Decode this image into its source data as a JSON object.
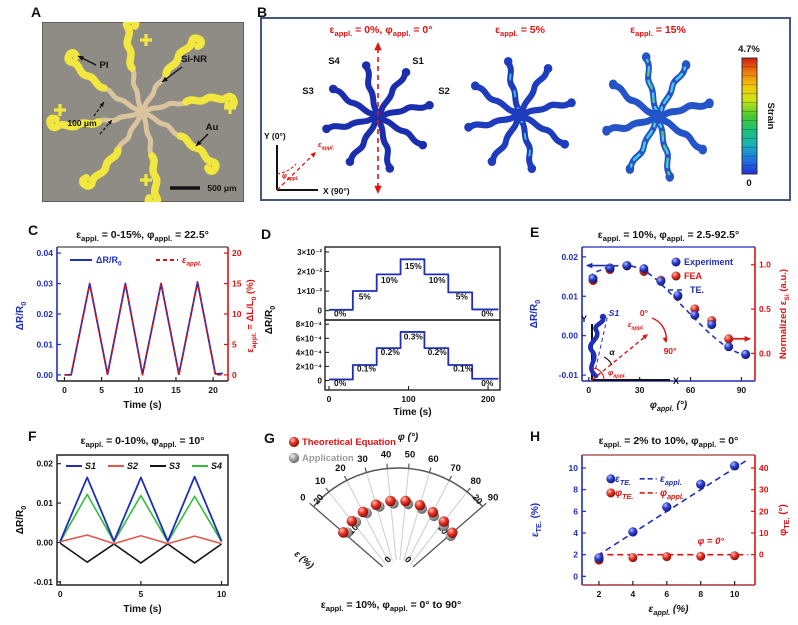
{
  "panels": {
    "a": "A",
    "b": "B",
    "c": "C",
    "d": "D",
    "e": "E",
    "f": "F",
    "g": "G",
    "h": "H"
  },
  "colors": {
    "blue": "#1f2fb8",
    "red": "#e01212",
    "salmon": "#e4574d",
    "green": "#2fbe3f",
    "black": "#151515",
    "gray": "#9a9a9a",
    "gold": "#f2e73e",
    "tan": "#d9c49d",
    "micrograph_bg": "#8e8c85",
    "frame": "#46577e",
    "cyan": "#3fc6e0",
    "darkline": "#333333",
    "maroon": "#a03838"
  },
  "panel_a": {
    "pi": "PI",
    "si_nr": "Si-NR",
    "width_note": "100 μm",
    "au": "Au",
    "scalebar": "500 μm"
  },
  "panel_b": {
    "titles": [
      "ε_{appl.} = 0%, φ_{appl.} = 0°",
      "ε_{appl.} = 5%",
      "ε_{appl.} = 15%"
    ],
    "sensors": {
      "s4": "S4",
      "s1": "S1",
      "s3": "S3",
      "s2": "S2"
    },
    "axis_y": "Y (0°)",
    "axis_x": "X (90°)",
    "eps_arrow": "ε_{appl.}",
    "phi_arrow": "φ_{appl.}",
    "colorbar": {
      "max": "4.7%",
      "min": "0",
      "label": "Strain"
    }
  },
  "chart_data": [
    {
      "id": "C",
      "type": "line",
      "title": "ε_{appl.} = 0-15%, φ_{appl.} = 22.5°",
      "xlabel": "Time (s)",
      "ylabel_left": "ΔR/R_{0}",
      "ylabel_right": "ε_{appl.} = ΔL/L_{0} (%)",
      "xlim": [
        -1,
        22
      ],
      "xticks": [
        0,
        5,
        10,
        15,
        20
      ],
      "ylim_left": [
        -0.002,
        0.042
      ],
      "yvals_left": [
        0,
        0.01,
        0.02,
        0.03,
        0.04
      ],
      "yticks_left": [
        "0.00",
        "0.01",
        "0.02",
        "0.03",
        "0.04"
      ],
      "ylim_right": [
        -1,
        21
      ],
      "yvals_right": [
        0,
        5,
        10,
        15,
        20
      ],
      "yticks_right": [
        "0",
        "5",
        "10",
        "15",
        "20"
      ],
      "legend": [
        {
          "label": "ΔR/R_{0}",
          "color": "blue",
          "dash": false
        },
        {
          "label": "ε_{appl.}",
          "color": "red",
          "dash": true
        }
      ],
      "series": [
        {
          "name": "dR-R0",
          "axis": "left",
          "color": "blue",
          "dash": false,
          "x": [
            0,
            0.9,
            3.4,
            5.8,
            8.2,
            10.5,
            13.0,
            15.4,
            17.9,
            20.3,
            21.3
          ],
          "y": [
            0,
            0,
            0.03,
            0.0002,
            0.03,
            0.0002,
            0.03,
            0.0002,
            0.0305,
            0.0003,
            0.0005
          ]
        },
        {
          "name": "eps-appl",
          "axis": "right",
          "color": "red",
          "dash": true,
          "x": [
            0,
            0.9,
            3.4,
            5.8,
            8.2,
            10.5,
            13.0,
            15.4,
            17.9,
            20.3,
            21.3
          ],
          "y": [
            0,
            0,
            15,
            0,
            15,
            0,
            15,
            0,
            15.2,
            0,
            0
          ]
        }
      ]
    },
    {
      "id": "D",
      "type": "steps",
      "xlabel": "Time (s)",
      "ylabel": "ΔR/R_{0}",
      "xlim": [
        -5,
        215
      ],
      "xticks": [
        0,
        100,
        200
      ],
      "top": {
        "ylim": [
          -0.0048,
          0.0325
        ],
        "yvals": [
          0,
          0.01,
          0.02,
          0.03
        ],
        "yticks": [
          "0",
          "1×10⁻²",
          "2×10⁻²",
          "3×10⁻²"
        ],
        "edges": [
          0,
          30,
          60,
          90,
          120,
          150,
          180,
          213
        ],
        "levels": [
          0.0004,
          0.01,
          0.0185,
          0.0262,
          0.0185,
          0.0093,
          0.0006
        ],
        "labels": [
          {
            "t": "0%",
            "x": 14,
            "y": -0.003
          },
          {
            "t": "5%",
            "x": 45,
            "y": 0.0057
          },
          {
            "t": "10%",
            "x": 76,
            "y": 0.0142
          },
          {
            "t": "15%",
            "x": 106,
            "y": 0.0213
          },
          {
            "t": "10%",
            "x": 136,
            "y": 0.0142
          },
          {
            "t": "5%",
            "x": 167,
            "y": 0.0057
          },
          {
            "t": "0%",
            "x": 199,
            "y": -0.003
          }
        ]
      },
      "bottom": {
        "ylim": [
          -0.000135,
          0.00086
        ],
        "yvals": [
          0,
          0.0002,
          0.0004,
          0.0006,
          0.0008
        ],
        "yticks": [
          "0",
          "2×10⁻⁴",
          "4×10⁻⁴",
          "6×10⁻⁴",
          "8×10⁻⁴"
        ],
        "edges": [
          0,
          30,
          60,
          90,
          120,
          150,
          180,
          213
        ],
        "levels": [
          1.5e-05,
          0.00022,
          0.00046,
          0.00069,
          0.00046,
          0.00022,
          2.5e-05
        ],
        "labels": [
          {
            "t": "0%",
            "x": 14,
            "y": -8e-05
          },
          {
            "t": "0.1%",
            "x": 47,
            "y": 0.00013
          },
          {
            "t": "0.2%",
            "x": 77,
            "y": 0.00036
          },
          {
            "t": "0.3%",
            "x": 106,
            "y": 0.00058
          },
          {
            "t": "0.2%",
            "x": 136,
            "y": 0.00036
          },
          {
            "t": "0.1%",
            "x": 168,
            "y": 0.00013
          },
          {
            "t": "0%",
            "x": 199,
            "y": -8e-05
          }
        ]
      }
    },
    {
      "id": "E",
      "type": "scatter-dual",
      "title": "ε_{appl.} = 10%, φ_{appl.} = 2.5-92.5°",
      "xlabel": "φ_{appl.} (°)",
      "ylabel_left": "ΔR/R_{0}",
      "ylabel_right": "Normalized ε_{Si} (a.u.)",
      "xlim": [
        -4,
        98
      ],
      "xticks": [
        0,
        30,
        60,
        90
      ],
      "ylim_left": [
        -0.0115,
        0.0225
      ],
      "yvals_left": [
        -0.01,
        0,
        0.01,
        0.02
      ],
      "yticks_left": [
        "-0.01",
        "0.00",
        "0.01",
        "0.02"
      ],
      "right_ticks": [
        {
          "label": "0.0",
          "left_equiv": -0.0045
        },
        {
          "label": "0.5",
          "left_equiv": 0.00675
        },
        {
          "label": "1.0",
          "left_equiv": 0.018
        }
      ],
      "legend": [
        {
          "label": "Experiment",
          "color": "blue",
          "type": "sphere"
        },
        {
          "label": "FEA",
          "color": "red",
          "type": "sphere"
        },
        {
          "label": "TE.",
          "color": "blue",
          "type": "dash"
        }
      ],
      "te_curve": {
        "x": [
          0,
          5,
          10,
          15,
          20,
          25,
          30,
          35,
          40,
          45,
          50,
          55,
          60,
          65,
          70,
          75,
          80,
          85,
          90,
          95
        ],
        "y": [
          0.015,
          0.0163,
          0.0172,
          0.0177,
          0.0178,
          0.0177,
          0.0171,
          0.0159,
          0.0142,
          0.0121,
          0.0099,
          0.0076,
          0.0054,
          0.0032,
          0.0011,
          -0.0008,
          -0.0025,
          -0.0038,
          -0.0047,
          -0.0052
        ]
      },
      "experiment": {
        "x": [
          2.5,
          12.5,
          22.5,
          32.5,
          42.5,
          52.5,
          62.5,
          72.5,
          82.5,
          92.5
        ],
        "y": [
          0.0145,
          0.0172,
          0.0178,
          0.017,
          0.0138,
          0.0102,
          0.0052,
          0.0028,
          -0.0028,
          -0.0047
        ]
      },
      "fea": {
        "x": [
          2.5,
          12.5,
          22.5,
          32.5,
          42.5,
          52.5,
          62.5,
          72.5,
          82.5,
          92.5
        ],
        "y": [
          0.014,
          0.0168,
          0.0177,
          0.0163,
          0.0141,
          0.01,
          0.0068,
          0.0038,
          -0.0008,
          -0.0048
        ]
      },
      "inset": {
        "s1": "S1",
        "y": "Y",
        "x": "X",
        "alpha": "α",
        "deg0": "0°",
        "deg90": "90°",
        "eps": "ε_{appl.}",
        "phi": "φ_{appl.}"
      }
    },
    {
      "id": "F",
      "type": "line",
      "title": "ε_{appl.} = 0-10%, φ_{appl.} = 10°",
      "xlabel": "Time (s)",
      "ylabel_left": "ΔR/R_{0}",
      "xlim": [
        -0.2,
        10.4
      ],
      "xticks": [
        0,
        5,
        10
      ],
      "ylim_left": [
        -0.0108,
        0.0222
      ],
      "yvals_left": [
        -0.01,
        0,
        0.01,
        0.02
      ],
      "yticks_left": [
        "-0.01",
        "0.00",
        "0.01",
        "0.02"
      ],
      "legend": [
        {
          "label": "S1",
          "color": "blue"
        },
        {
          "label": "S2",
          "color": "salmon"
        },
        {
          "label": "S3",
          "color": "black"
        },
        {
          "label": "S4",
          "color": "green"
        }
      ],
      "series": [
        {
          "name": "S3",
          "color": "black",
          "x": [
            0,
            1.67,
            3.33,
            5,
            6.67,
            8.33,
            10
          ],
          "y": [
            -0.0002,
            -0.005,
            -0.0004,
            -0.0052,
            -0.0004,
            -0.0052,
            -0.0004
          ]
        },
        {
          "name": "S2",
          "color": "salmon",
          "x": [
            0,
            1.67,
            3.33,
            5,
            6.67,
            8.33,
            10
          ],
          "y": [
            0.0002,
            0.0019,
            -0.0003,
            0.0017,
            -0.0003,
            0.0016,
            -0.0003
          ]
        },
        {
          "name": "S4",
          "color": "green",
          "x": [
            0,
            1.67,
            3.33,
            5,
            6.67,
            8.33,
            10
          ],
          "y": [
            0.0002,
            0.0122,
            0.0002,
            0.0119,
            0.0002,
            0.0117,
            0.0002
          ]
        },
        {
          "name": "S1",
          "color": "blue",
          "x": [
            0,
            1.67,
            3.33,
            5,
            6.67,
            8.33,
            10
          ],
          "y": [
            0.0003,
            0.0165,
            0.0003,
            0.0165,
            0.0003,
            0.0167,
            0.0003
          ]
        }
      ]
    },
    {
      "id": "G",
      "type": "polar-fan",
      "angle_label": "φ (°)",
      "radial_label": "ε (%)",
      "caption": "ε_{appl.} = 10%, φ_{appl.} = 0° to 90°",
      "angle_ticks": [
        0,
        10,
        20,
        30,
        40,
        50,
        60,
        70,
        80,
        90
      ],
      "radial_ticks": [
        0,
        10,
        20
      ],
      "rlim": [
        0,
        20
      ],
      "legend": [
        {
          "label": "Theoretical Equation",
          "color": "red"
        },
        {
          "label": "Application",
          "color": "gray"
        }
      ],
      "theory": {
        "phi": [
          0,
          10,
          20,
          30,
          40,
          50,
          60,
          70,
          80,
          90
        ],
        "eps": [
          11.4,
          11.9,
          12.3,
          12.7,
          12.9,
          12.9,
          12.6,
          12.2,
          11.8,
          11.3
        ]
      },
      "application": {
        "phi": [
          2,
          12,
          22,
          32,
          42,
          52,
          62,
          72,
          82,
          91
        ],
        "eps": [
          10.7,
          11.2,
          11.7,
          12.1,
          12.3,
          12.3,
          12.0,
          11.6,
          11.1,
          10.6
        ]
      }
    },
    {
      "id": "H",
      "type": "scatter-dual-2",
      "title": "ε_{appl.} = 2% to 10%, φ_{appl.} = 0°",
      "xlabel": "ε_{appl.} (%)",
      "ylabel_left": "ε_{TE.} (%)",
      "ylabel_right": "φ_{TE.} (°)",
      "xlim": [
        1,
        11.2
      ],
      "xticks": [
        2,
        4,
        6,
        8,
        10
      ],
      "ylim_left": [
        -0.8,
        11.2
      ],
      "yvals_left": [
        0,
        2,
        4,
        6,
        8,
        10
      ],
      "yticks_left": [
        "0",
        "2",
        "4",
        "6",
        "8",
        "10"
      ],
      "right_ticks": [
        {
          "label": "0",
          "left_equiv": 2
        },
        {
          "label": "10",
          "left_equiv": 4
        },
        {
          "label": "20",
          "left_equiv": 6
        },
        {
          "label": "30",
          "left_equiv": 8
        },
        {
          "label": "40",
          "left_equiv": 10
        }
      ],
      "eps_te": {
        "x": [
          2,
          4,
          6,
          8,
          10
        ],
        "y": [
          1.7,
          4.1,
          6.4,
          8.5,
          10.2
        ]
      },
      "phi_te": {
        "x": [
          2,
          4,
          6,
          8,
          10
        ],
        "y_left_equiv": [
          1.5,
          1.72,
          1.82,
          1.85,
          1.9
        ]
      },
      "ref_line_blue": {
        "x": [
          1.9,
          10.7
        ],
        "y": [
          1.9,
          10.7
        ]
      },
      "ref_line_red_left_equiv": 2.0,
      "annotation": "φ = 0°",
      "legend": [
        {
          "sphere": "blue",
          "label1": "ε_{TE.}",
          "label2": "ε_{appl.}"
        },
        {
          "sphere": "red",
          "label1": "φ_{TE.}",
          "label2": "φ_{appl.}"
        }
      ]
    }
  ]
}
